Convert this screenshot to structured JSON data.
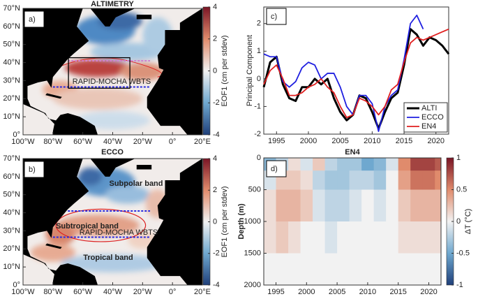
{
  "chart_data": [
    {
      "type": "map",
      "title": "ALTIMETRY",
      "panel_label": "a)",
      "xlim": [
        -100,
        20
      ],
      "ylim": [
        0,
        70
      ],
      "xticks": [
        {
          "value": -100,
          "label": "100°W"
        },
        {
          "value": -80,
          "label": "80°W"
        },
        {
          "value": -60,
          "label": "60°W"
        },
        {
          "value": -40,
          "label": "40°W"
        },
        {
          "value": -20,
          "label": "20°W"
        },
        {
          "value": 0,
          "label": "0°"
        },
        {
          "value": 20,
          "label": "20°E"
        }
      ],
      "yticks": [
        {
          "value": 0,
          "label": "0°"
        },
        {
          "value": 10,
          "label": "10°N"
        },
        {
          "value": 20,
          "label": "20°N"
        },
        {
          "value": 30,
          "label": "30°N"
        },
        {
          "value": 40,
          "label": "40°N"
        },
        {
          "value": 50,
          "label": "50°N"
        },
        {
          "value": 60,
          "label": "60°N"
        },
        {
          "value": 70,
          "label": "70°N"
        }
      ],
      "colorbar": {
        "label": "EOF1 (cm per stdev)",
        "lim": [
          -4,
          4
        ],
        "ticks": [
          4,
          2,
          0,
          -2,
          -4
        ]
      },
      "annotations": [
        "RAPID-MOCHA WBTS"
      ]
    },
    {
      "type": "map",
      "title": "ECCO",
      "panel_label": "b)",
      "xlim": [
        -100,
        20
      ],
      "ylim": [
        0,
        70
      ],
      "xticks": [
        {
          "value": -100,
          "label": "100°W"
        },
        {
          "value": -80,
          "label": "80°W"
        },
        {
          "value": -60,
          "label": "60°W"
        },
        {
          "value": -40,
          "label": "40°W"
        },
        {
          "value": -20,
          "label": "20°W"
        },
        {
          "value": 0,
          "label": "0°"
        },
        {
          "value": 20,
          "label": "20°E"
        }
      ],
      "yticks": [
        {
          "value": 0,
          "label": "0°"
        },
        {
          "value": 10,
          "label": "10°N"
        },
        {
          "value": 20,
          "label": "20°N"
        },
        {
          "value": 30,
          "label": "30°N"
        },
        {
          "value": 40,
          "label": "40°N"
        },
        {
          "value": 50,
          "label": "50°N"
        },
        {
          "value": 60,
          "label": "60°N"
        },
        {
          "value": 70,
          "label": "70°N"
        }
      ],
      "colorbar": {
        "label": "EOF1 (cm per stdev)",
        "lim": [
          -4,
          4
        ],
        "ticks": [
          4,
          2,
          0,
          -2,
          -4
        ]
      },
      "annotations": [
        "Subpolar band",
        "Subtropical band",
        "Tropical band",
        "RAPID-MOCHA WBTS"
      ]
    },
    {
      "type": "line",
      "panel_label": "c)",
      "ylabel": "Principal Component",
      "xlim": [
        1993,
        2022
      ],
      "ylim": [
        -2,
        2.6
      ],
      "xticks": [
        1995,
        2000,
        2005,
        2010,
        2015,
        2020
      ],
      "yticks": [
        -2,
        -1,
        0,
        1,
        2
      ],
      "legend": "lower right",
      "series": [
        {
          "name": "ALTI",
          "color": "#000000",
          "x": [
            1993,
            1994,
            1995,
            1996,
            1997,
            1998,
            1999,
            2000,
            2001,
            2002,
            2003,
            2004,
            2005,
            2006,
            2007,
            2008,
            2009,
            2010,
            2011,
            2012,
            2013,
            2014,
            2015,
            2016,
            2017,
            2018,
            2019,
            2020,
            2021,
            2022
          ],
          "values": [
            -0.3,
            0.6,
            0.8,
            -0.2,
            -0.7,
            -0.8,
            -0.3,
            -0.3,
            0,
            -0.2,
            0,
            -0.7,
            -1.2,
            -1.5,
            -1.3,
            -0.6,
            -0.7,
            -1.2,
            -1.8,
            -1.2,
            -0.7,
            -0.5,
            0.5,
            1.8,
            1.6,
            1.2,
            1.5,
            1.4,
            1.2,
            0.9
          ]
        },
        {
          "name": "ECCO",
          "color": "#1f1fe0",
          "x": [
            1993,
            1994,
            1995,
            1996,
            1997,
            1998,
            1999,
            2000,
            2001,
            2002,
            2003,
            2004,
            2005,
            2006,
            2007,
            2008,
            2009,
            2010,
            2011,
            2012,
            2013,
            2014,
            2015,
            2016,
            2017,
            2018
          ],
          "values": [
            0.9,
            0.8,
            0.8,
            -0.1,
            -0.3,
            -0.1,
            0.4,
            0.6,
            0.5,
            0,
            0.2,
            0.2,
            -0.3,
            -1.0,
            -1.3,
            -0.6,
            -0.6,
            -0.9,
            -1.9,
            -1.0,
            -0.6,
            -0.4,
            0.7,
            2.0,
            2.3,
            1.8
          ]
        },
        {
          "name": "EN4",
          "color": "#e01f1f",
          "x": [
            1993,
            1994,
            1995,
            1996,
            1997,
            1998,
            1999,
            2000,
            2001,
            2002,
            2003,
            2004,
            2005,
            2006,
            2007,
            2008,
            2009,
            2010,
            2011,
            2012,
            2013,
            2014,
            2015,
            2016,
            2017,
            2018,
            2019,
            2020,
            2021,
            2022
          ],
          "values": [
            -0.2,
            0.3,
            0.5,
            0,
            -0.6,
            -0.6,
            -0.5,
            -0.3,
            -0.2,
            0,
            -0.3,
            -0.5,
            -1.0,
            -1.4,
            -1.3,
            -0.7,
            -0.8,
            -1.0,
            -1.3,
            -1.0,
            -0.4,
            -0.2,
            0.6,
            1.3,
            1.5,
            1.4,
            1.5,
            1.6,
            1.7,
            1.8
          ]
        }
      ]
    },
    {
      "type": "heatmap",
      "title": "EN4",
      "panel_label": "d)",
      "ylabel": "Depth (m)",
      "xlim": [
        1993,
        2022
      ],
      "ylim": [
        2000,
        0
      ],
      "xticks": [
        1995,
        2000,
        2005,
        2010,
        2015,
        2020
      ],
      "yticks": [
        0,
        500,
        1000,
        1500,
        2000
      ],
      "x_bins": [
        1993,
        1995,
        1997,
        1999,
        2001,
        2003,
        2005,
        2007,
        2009,
        2011,
        2013,
        2015,
        2017,
        2019,
        2021,
        2022
      ],
      "y_bins": [
        0,
        200,
        500,
        1000,
        1500,
        2000
      ],
      "values": [
        [
          -0.4,
          -0.2,
          0.1,
          -0.1,
          0.2,
          -0.2,
          -0.3,
          -0.3,
          -0.5,
          -0.4,
          -0.1,
          0.5,
          0.8,
          0.8,
          0.7
        ],
        [
          -0.1,
          0.2,
          0.2,
          0.1,
          -0.2,
          -0.3,
          -0.3,
          -0.2,
          -0.2,
          -0.3,
          0,
          0.4,
          0.6,
          0.6,
          0.5
        ],
        [
          0.1,
          0.3,
          0.3,
          0.2,
          -0.1,
          -0.2,
          -0.2,
          -0.1,
          0,
          -0.1,
          0,
          0.2,
          0.3,
          0.3,
          0.3
        ],
        [
          0.1,
          0.2,
          0.1,
          0,
          0,
          -0.1,
          0,
          0,
          0,
          0,
          0,
          0.1,
          0.1,
          0.1,
          0.1
        ],
        [
          0,
          0,
          0,
          0,
          0,
          0,
          0,
          0,
          0,
          0,
          0,
          0,
          0,
          0,
          0
        ]
      ],
      "colorbar": {
        "label": "ΔT (°C)",
        "lim": [
          -1,
          1
        ],
        "ticks": [
          1,
          0.5,
          0,
          -0.5,
          -1
        ]
      }
    }
  ]
}
